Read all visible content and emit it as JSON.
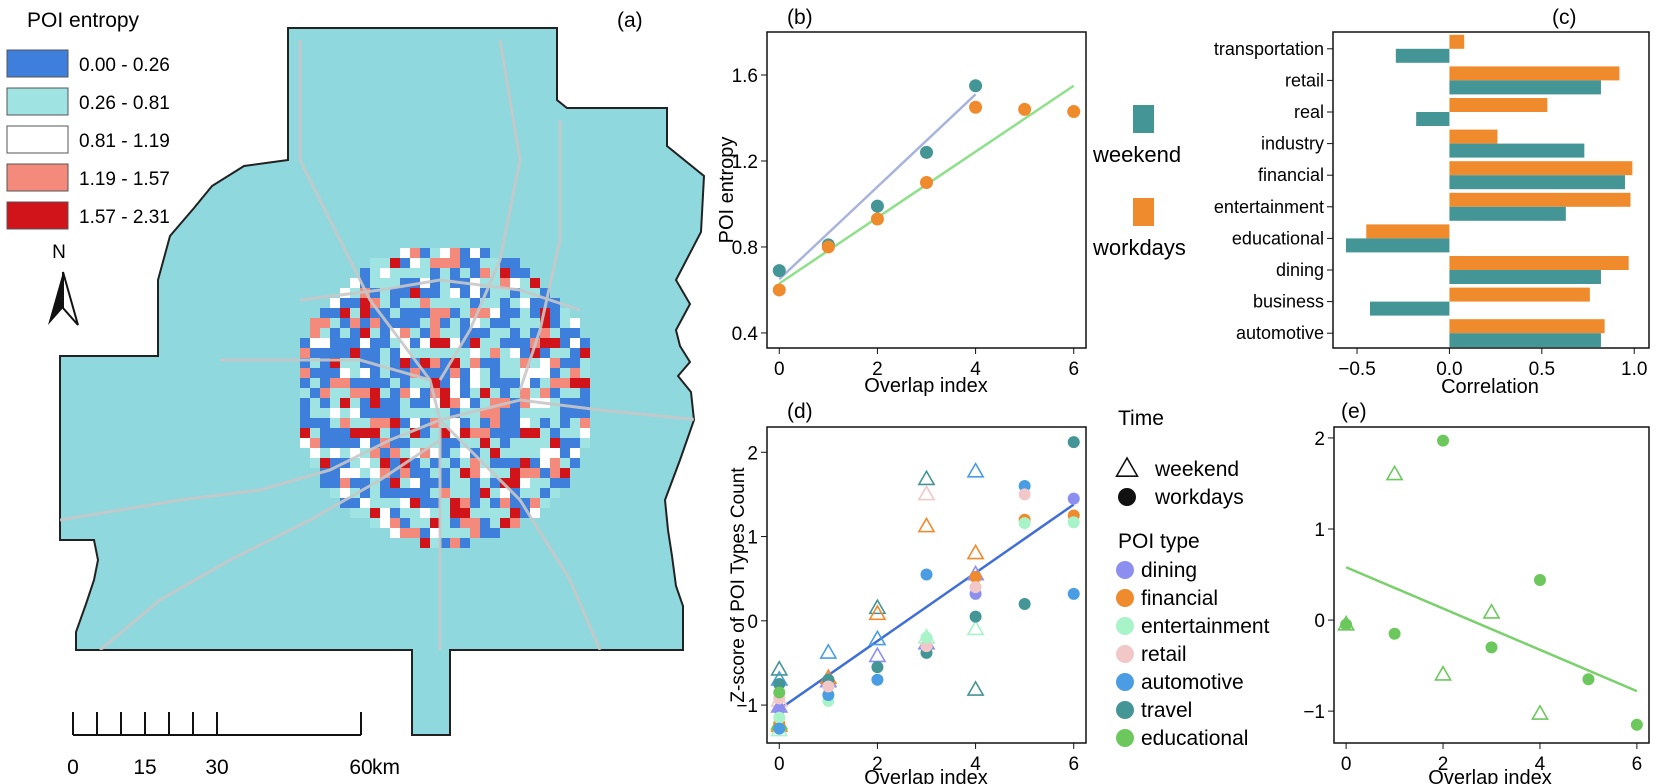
{
  "colors": {
    "weekend": "#449596",
    "workdays": "#ef8a2d",
    "fit_b_weekend": "#a9b4dc",
    "fit_b_workdays": "#8fe08a",
    "fit_d": "#3f6fd6",
    "fit_e": "#7ad06c",
    "poi": {
      "dining": "#8c8ff0",
      "financial": "#ef8a2d",
      "entertainment": "#a8f3c8",
      "retail": "#f2c7c7",
      "automotive": "#4a9de3",
      "travel": "#449596",
      "educational": "#6cc85d"
    },
    "entropy_classes": [
      "#3d7fdb",
      "#9fe3e3",
      "#ffffff",
      "#f38a7c",
      "#d1141a"
    ],
    "map_base": "#8fd8de"
  },
  "map": {
    "panel_label": "(a)",
    "legend_title": "POI entropy",
    "legend_items": [
      "0.00 - 0.26",
      "0.26 - 0.81",
      "0.81 - 1.19",
      "1.19 - 1.57",
      "1.57 - 2.31"
    ],
    "north_label": "N",
    "scale_ticks": [
      "0",
      "15",
      "30",
      "60"
    ],
    "scale_unit": "km"
  },
  "chart_data": [
    {
      "id": "b",
      "type": "scatter",
      "panel_label": "(b)",
      "title": "",
      "xlabel": "Overlap index",
      "ylabel": "POI entropy",
      "xlim": [
        -0.25,
        6.25
      ],
      "ylim": [
        0.33,
        1.8
      ],
      "xticks": [
        0,
        2,
        4,
        6
      ],
      "yticks": [
        0.4,
        0.8,
        1.2,
        1.6
      ],
      "ytick_labels": [
        "0.4",
        "0.8",
        "1.2",
        "1.6"
      ],
      "series": [
        {
          "name": "weekend",
          "x": [
            0,
            1,
            2,
            3,
            4
          ],
          "y": [
            0.69,
            0.81,
            0.99,
            1.24,
            1.55
          ],
          "fit": [
            [
              0,
              0.65
            ],
            [
              4,
              1.51
            ]
          ]
        },
        {
          "name": "workdays",
          "x": [
            0,
            1,
            2,
            3,
            4,
            5,
            6
          ],
          "y": [
            0.6,
            0.8,
            0.93,
            1.1,
            1.45,
            1.44,
            1.43
          ],
          "fit": [
            [
              0,
              0.63
            ],
            [
              6,
              1.55
            ]
          ]
        }
      ],
      "legend": [
        "weekend",
        "workdays"
      ],
      "legend_position": "right"
    },
    {
      "id": "c",
      "type": "bar",
      "orientation": "horizontal",
      "panel_label": "(c)",
      "xlabel": "Correlation",
      "xlim": [
        -0.63,
        1.08
      ],
      "xticks": [
        -0.5,
        0.0,
        0.5,
        1.0
      ],
      "xtick_labels": [
        "-0.5",
        "0.0",
        "0.5",
        "1.0"
      ],
      "categories": [
        "transportation",
        "retail",
        "real",
        "industry",
        "financial",
        "entertainment",
        "educational",
        "dining",
        "business",
        "automotive"
      ],
      "series": [
        {
          "name": "workdays",
          "values": [
            0.08,
            0.92,
            0.53,
            0.26,
            0.99,
            0.98,
            -0.45,
            0.97,
            0.76,
            0.84
          ]
        },
        {
          "name": "weekend",
          "values": [
            -0.29,
            0.82,
            -0.18,
            0.73,
            0.95,
            0.63,
            -0.56,
            0.82,
            -0.43,
            0.82
          ]
        }
      ]
    },
    {
      "id": "d",
      "type": "scatter",
      "panel_label": "(d)",
      "xlabel": "Overlap index",
      "ylabel": "Z-score of POI Types Count",
      "xlim": [
        -0.25,
        6.25
      ],
      "ylim": [
        -1.45,
        2.3
      ],
      "xticks": [
        0,
        2,
        4,
        6
      ],
      "yticks": [
        -1,
        0,
        1,
        2
      ],
      "ytick_labels": [
        "-1",
        "0",
        "1",
        "2"
      ],
      "fit": [
        [
          0,
          -1.05
        ],
        [
          6,
          1.38
        ]
      ],
      "time_legend_title": "Time",
      "time_legend": [
        "weekend",
        "workdays"
      ],
      "poi_legend_title": "POI type",
      "poi_legend": [
        "dining",
        "financial",
        "entertainment",
        "retail",
        "automotive",
        "travel",
        "educational"
      ],
      "points": [
        {
          "poi": "dining",
          "time": "weekend",
          "x": 0,
          "y": -1.02
        },
        {
          "poi": "financial",
          "time": "weekend",
          "x": 0,
          "y": -1.25
        },
        {
          "poi": "entertainment",
          "time": "weekend",
          "x": 0,
          "y": -1.3
        },
        {
          "poi": "retail",
          "time": "weekend",
          "x": 0,
          "y": -0.95
        },
        {
          "poi": "automotive",
          "time": "weekend",
          "x": 0,
          "y": -0.7
        },
        {
          "poi": "travel",
          "time": "weekend",
          "x": 0,
          "y": -0.58
        },
        {
          "poi": "educational",
          "time": "weekend",
          "x": 0,
          "y": -1.22
        },
        {
          "poi": "dining",
          "time": "workdays",
          "x": 0,
          "y": -1.05
        },
        {
          "poi": "financial",
          "time": "workdays",
          "x": 0,
          "y": -1.22
        },
        {
          "poi": "entertainment",
          "time": "workdays",
          "x": 0,
          "y": -1.15
        },
        {
          "poi": "retail",
          "time": "workdays",
          "x": 0,
          "y": -0.92
        },
        {
          "poi": "automotive",
          "time": "workdays",
          "x": 0,
          "y": -1.28
        },
        {
          "poi": "travel",
          "time": "workdays",
          "x": 0,
          "y": -0.75
        },
        {
          "poi": "educational",
          "time": "workdays",
          "x": 0,
          "y": -0.85
        },
        {
          "poi": "dining",
          "time": "weekend",
          "x": 1,
          "y": -0.72
        },
        {
          "poi": "automotive",
          "time": "weekend",
          "x": 1,
          "y": -0.38
        },
        {
          "poi": "financial",
          "time": "weekend",
          "x": 1,
          "y": -0.68
        },
        {
          "poi": "entertainment",
          "time": "workdays",
          "x": 1,
          "y": -0.95
        },
        {
          "poi": "automotive",
          "time": "workdays",
          "x": 1,
          "y": -0.88
        },
        {
          "poi": "travel",
          "time": "workdays",
          "x": 1,
          "y": -0.7
        },
        {
          "poi": "retail",
          "time": "workdays",
          "x": 1,
          "y": -0.78
        },
        {
          "poi": "travel",
          "time": "weekend",
          "x": 2,
          "y": 0.15
        },
        {
          "poi": "financial",
          "time": "weekend",
          "x": 2,
          "y": 0.08
        },
        {
          "poi": "automotive",
          "time": "weekend",
          "x": 2,
          "y": -0.22
        },
        {
          "poi": "dining",
          "time": "weekend",
          "x": 2,
          "y": -0.42
        },
        {
          "poi": "travel",
          "time": "workdays",
          "x": 2,
          "y": -0.55
        },
        {
          "poi": "automotive",
          "time": "workdays",
          "x": 2,
          "y": -0.7
        },
        {
          "poi": "travel",
          "time": "weekend",
          "x": 3,
          "y": 1.68
        },
        {
          "poi": "retail",
          "time": "weekend",
          "x": 3,
          "y": 1.5
        },
        {
          "poi": "financial",
          "time": "weekend",
          "x": 3,
          "y": 1.12
        },
        {
          "poi": "dining",
          "time": "weekend",
          "x": 3,
          "y": -0.27
        },
        {
          "poi": "entertainment",
          "time": "weekend",
          "x": 3,
          "y": -0.2
        },
        {
          "poi": "automotive",
          "time": "workdays",
          "x": 3,
          "y": 0.55
        },
        {
          "poi": "travel",
          "time": "workdays",
          "x": 3,
          "y": -0.38
        },
        {
          "poi": "retail",
          "time": "workdays",
          "x": 3,
          "y": -0.3
        },
        {
          "poi": "entertainment",
          "time": "workdays",
          "x": 3,
          "y": -0.2
        },
        {
          "poi": "automotive",
          "time": "weekend",
          "x": 4,
          "y": 1.77
        },
        {
          "poi": "financial",
          "time": "weekend",
          "x": 4,
          "y": 0.8
        },
        {
          "poi": "dining",
          "time": "weekend",
          "x": 4,
          "y": 0.55
        },
        {
          "poi": "entertainment",
          "time": "weekend",
          "x": 4,
          "y": -0.1
        },
        {
          "poi": "travel",
          "time": "weekend",
          "x": 4,
          "y": -0.82
        },
        {
          "poi": "financial",
          "time": "workdays",
          "x": 4,
          "y": 0.52
        },
        {
          "poi": "dining",
          "time": "workdays",
          "x": 4,
          "y": 0.32
        },
        {
          "poi": "travel",
          "time": "workdays",
          "x": 4,
          "y": 0.05
        },
        {
          "poi": "retail",
          "time": "workdays",
          "x": 4,
          "y": 0.4
        },
        {
          "poi": "automotive",
          "time": "workdays",
          "x": 5,
          "y": 1.6
        },
        {
          "poi": "retail",
          "time": "workdays",
          "x": 5,
          "y": 1.5
        },
        {
          "poi": "financial",
          "time": "workdays",
          "x": 5,
          "y": 1.2
        },
        {
          "poi": "entertainment",
          "time": "workdays",
          "x": 5,
          "y": 1.16
        },
        {
          "poi": "travel",
          "time": "workdays",
          "x": 5,
          "y": 0.2
        },
        {
          "poi": "travel",
          "time": "workdays",
          "x": 6,
          "y": 2.12
        },
        {
          "poi": "dining",
          "time": "workdays",
          "x": 6,
          "y": 1.45
        },
        {
          "poi": "financial",
          "time": "workdays",
          "x": 6,
          "y": 1.25
        },
        {
          "poi": "entertainment",
          "time": "workdays",
          "x": 6,
          "y": 1.17
        },
        {
          "poi": "automotive",
          "time": "workdays",
          "x": 6,
          "y": 0.32
        }
      ]
    },
    {
      "id": "e",
      "type": "scatter",
      "panel_label": "(e)",
      "xlabel": "Overlap index",
      "ylabel": "",
      "xlim": [
        -0.25,
        6.25
      ],
      "ylim": [
        -1.35,
        2.12
      ],
      "xticks": [
        0,
        2,
        4,
        6
      ],
      "yticks": [
        -1,
        0,
        1,
        2
      ],
      "ytick_labels": [
        "-1",
        "0",
        "1",
        "2"
      ],
      "fit": [
        [
          0,
          0.58
        ],
        [
          6,
          -0.78
        ]
      ],
      "series": [
        {
          "name": "weekend",
          "x": [
            0,
            1,
            2,
            3,
            4
          ],
          "y": [
            -0.05,
            1.6,
            -0.6,
            0.08,
            -1.03
          ]
        },
        {
          "name": "workdays",
          "x": [
            0,
            1,
            2,
            3,
            4,
            5,
            6
          ],
          "y": [
            -0.05,
            -0.15,
            1.97,
            -0.3,
            0.44,
            -0.65,
            -1.15
          ]
        }
      ]
    }
  ]
}
